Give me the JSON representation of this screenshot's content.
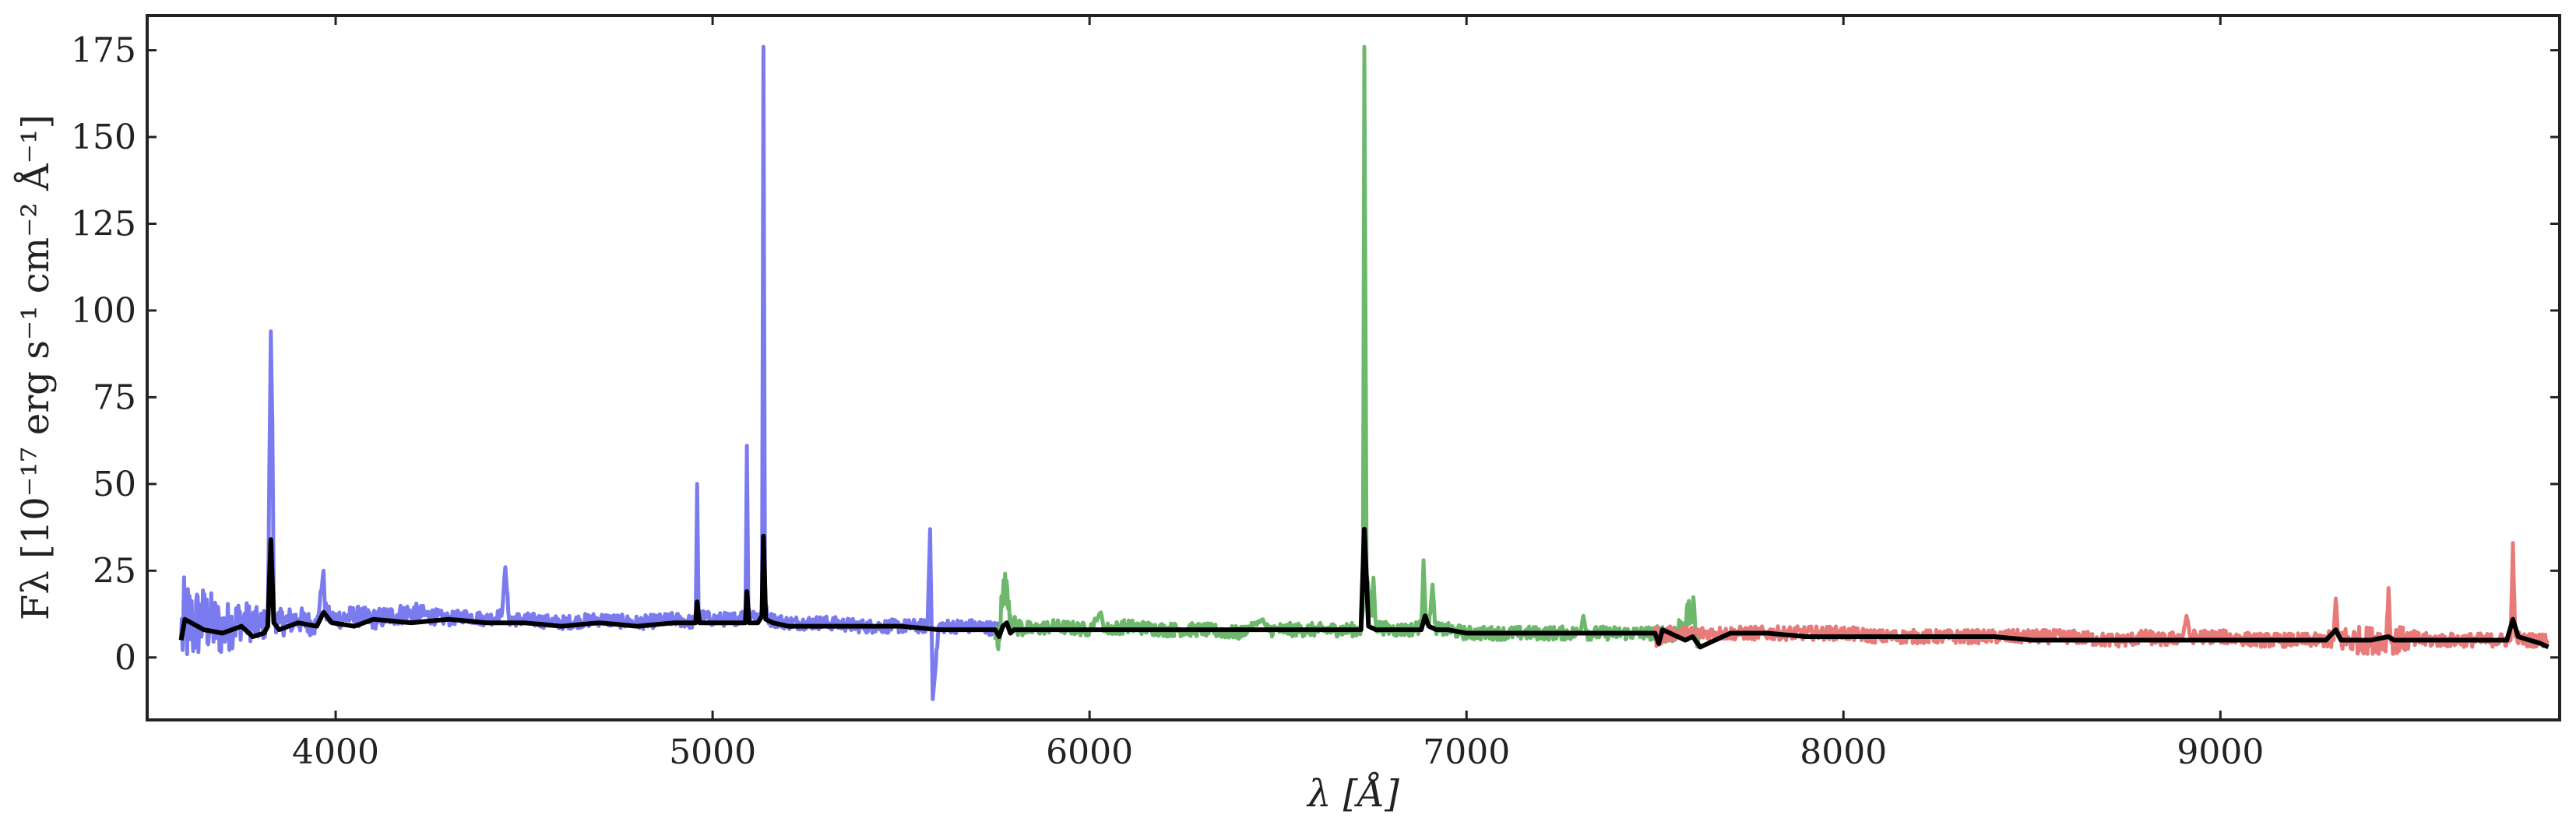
{
  "chart_data": {
    "type": "line",
    "xlabel": "λ [Å]",
    "ylabel": "Fλ [10⁻¹⁷ erg s⁻¹ cm⁻² Å⁻¹]",
    "xlim": [
      3500,
      9900
    ],
    "ylim": [
      -18,
      185
    ],
    "x_ticks": [
      4000,
      5000,
      6000,
      7000,
      8000,
      9000
    ],
    "y_ticks": [
      0,
      25,
      50,
      75,
      100,
      125,
      150,
      175
    ],
    "grid": false,
    "legend": "none",
    "series": [
      {
        "color": "#7b7bf0",
        "x": [
          3590,
          3600,
          3620,
          3650,
          3700,
          3750,
          3800,
          3820,
          3828,
          3832,
          3836,
          3850,
          3900,
          3950,
          3968,
          3972,
          3990,
          4050,
          4100,
          4200,
          4300,
          4340,
          4400,
          4440,
          4450,
          4460,
          4500,
          4600,
          4700,
          4800,
          4900,
          4955,
          4959,
          4963,
          5000,
          5050,
          5087,
          5091,
          5095,
          5120,
          5131,
          5135,
          5139,
          5150,
          5200,
          5300,
          5400,
          5500,
          5570,
          5577,
          5584,
          5600,
          5700,
          5770
        ],
        "y": [
          6,
          10,
          9,
          11,
          8,
          11,
          9,
          10,
          94,
          68,
          12,
          10,
          11,
          9,
          25,
          13,
          11,
          12,
          11,
          13,
          11,
          12,
          11,
          12,
          26,
          11,
          11,
          10,
          11,
          10,
          11,
          10,
          50,
          12,
          11,
          11,
          12,
          61,
          13,
          12,
          13,
          176,
          14,
          11,
          10,
          10,
          9,
          9,
          9,
          37,
          -12,
          9,
          9,
          8
        ],
        "noise": [
          14,
          14,
          12,
          10,
          8,
          6,
          5,
          4,
          0,
          0,
          4,
          4,
          4,
          3,
          0,
          3,
          3,
          3,
          3,
          3,
          2,
          2,
          2,
          2,
          0,
          2,
          2,
          2,
          2,
          2,
          2,
          2,
          0,
          2,
          2,
          2,
          2,
          0,
          2,
          2,
          2,
          0,
          2,
          2,
          2,
          2,
          2,
          2,
          2,
          0,
          0,
          2,
          2,
          2
        ]
      },
      {
        "color": "#6db86d",
        "x": [
          5750,
          5760,
          5770,
          5780,
          5790,
          5800,
          5850,
          5900,
          6000,
          6030,
          6040,
          6100,
          6200,
          6300,
          6400,
          6460,
          6470,
          6500,
          6550,
          6600,
          6700,
          6720,
          6725,
          6729,
          6735,
          6750,
          6753,
          6760,
          6800,
          6850,
          6880,
          6886,
          6892,
          6900,
          6910,
          6916,
          6922,
          6950,
          7000,
          7100,
          7200,
          7300,
          7310,
          7320,
          7400,
          7500,
          7550,
          7580,
          7600,
          7610,
          7620
        ],
        "y": [
          5,
          8,
          18,
          22,
          12,
          9,
          8,
          9,
          8,
          13,
          8,
          9,
          8,
          8,
          7,
          11,
          8,
          8,
          8,
          8,
          8,
          8,
          14,
          176,
          24,
          12,
          23,
          9,
          8,
          8,
          9,
          28,
          12,
          9,
          21,
          10,
          8,
          8,
          7,
          7,
          7,
          7,
          12,
          7,
          7,
          7,
          7,
          10,
          14,
          5,
          8
        ],
        "noise": [
          8,
          6,
          5,
          4,
          4,
          3,
          2,
          2,
          2,
          0,
          2,
          2,
          2,
          2,
          2,
          0,
          2,
          2,
          2,
          2,
          2,
          2,
          0,
          0,
          0,
          2,
          0,
          2,
          2,
          2,
          2,
          0,
          2,
          2,
          0,
          2,
          2,
          2,
          2,
          2,
          2,
          2,
          0,
          2,
          2,
          2,
          3,
          4,
          5,
          6,
          2
        ]
      },
      {
        "color": "#e87a7a",
        "x": [
          7500,
          7550,
          7600,
          7700,
          7800,
          7900,
          8000,
          8100,
          8200,
          8300,
          8400,
          8500,
          8600,
          8700,
          8750,
          8800,
          8850,
          8900,
          8910,
          8920,
          9000,
          9100,
          9200,
          9280,
          9300,
          9306,
          9312,
          9330,
          9360,
          9400,
          9440,
          9446,
          9452,
          9480,
          9500,
          9550,
          9600,
          9650,
          9700,
          9750,
          9770,
          9776,
          9782,
          9800,
          9850,
          9870
        ],
        "y": [
          6,
          7,
          7,
          7,
          7,
          7,
          7,
          6,
          6,
          6,
          6,
          6,
          6,
          5,
          5,
          6,
          5,
          6,
          12,
          6,
          6,
          5,
          5,
          5,
          5,
          17,
          6,
          5,
          5,
          5,
          5,
          20,
          5,
          5,
          5,
          5,
          5,
          5,
          5,
          5,
          5,
          33,
          6,
          5,
          5,
          5
        ],
        "noise": [
          3,
          2,
          2,
          2,
          2,
          2,
          2,
          2,
          2,
          2,
          2,
          2,
          2,
          2,
          2,
          2,
          2,
          2,
          0,
          2,
          2,
          2,
          2,
          2,
          4,
          0,
          4,
          4,
          4,
          4,
          4,
          0,
          4,
          4,
          3,
          2,
          2,
          2,
          2,
          2,
          2,
          0,
          2,
          2,
          2,
          2
        ]
      },
      {
        "color": "#000000",
        "x": [
          3590,
          3600,
          3650,
          3700,
          3750,
          3780,
          3810,
          3820,
          3828,
          3836,
          3850,
          3900,
          3950,
          3968,
          3990,
          4050,
          4100,
          4200,
          4300,
          4400,
          4500,
          4600,
          4700,
          4800,
          4900,
          4955,
          4959,
          4965,
          5000,
          5050,
          5087,
          5091,
          5097,
          5120,
          5131,
          5135,
          5141,
          5160,
          5200,
          5300,
          5400,
          5500,
          5600,
          5700,
          5750,
          5760,
          5770,
          5780,
          5790,
          5800,
          5850,
          5900,
          6000,
          6100,
          6200,
          6300,
          6400,
          6500,
          6600,
          6700,
          6720,
          6729,
          6740,
          6760,
          6800,
          6850,
          6880,
          6890,
          6900,
          6920,
          6950,
          7000,
          7100,
          7200,
          7300,
          7400,
          7500,
          7510,
          7520,
          7540,
          7560,
          7580,
          7600,
          7620,
          7700,
          7800,
          7900,
          8000,
          8100,
          8200,
          8300,
          8400,
          8500,
          8600,
          8700,
          8750,
          8800,
          8850,
          8900,
          9000,
          9100,
          9200,
          9280,
          9306,
          9320,
          9400,
          9446,
          9460,
          9500,
          9600,
          9700,
          9760,
          9776,
          9790,
          9820,
          9850,
          9870
        ],
        "y": [
          5,
          11,
          8,
          7,
          9,
          6,
          7,
          9,
          34,
          10,
          8,
          10,
          9,
          13,
          10,
          9,
          11,
          10,
          11,
          10,
          10,
          9,
          10,
          9,
          10,
          10,
          16,
          10,
          10,
          10,
          10,
          19,
          10,
          10,
          12,
          35,
          11,
          10,
          9,
          9,
          9,
          9,
          8,
          8,
          8,
          6,
          9,
          10,
          7,
          8,
          8,
          8,
          8,
          8,
          8,
          8,
          8,
          8,
          8,
          8,
          8,
          37,
          9,
          8,
          8,
          8,
          8,
          12,
          9,
          8,
          8,
          7,
          7,
          7,
          7,
          7,
          7,
          4,
          8,
          7,
          6,
          5,
          6,
          3,
          7,
          7,
          6,
          6,
          6,
          6,
          6,
          6,
          5,
          5,
          5,
          5,
          5,
          5,
          5,
          5,
          5,
          5,
          5,
          8,
          5,
          5,
          6,
          5,
          5,
          5,
          5,
          5,
          11,
          6,
          5,
          4,
          3
        ]
      }
    ]
  }
}
